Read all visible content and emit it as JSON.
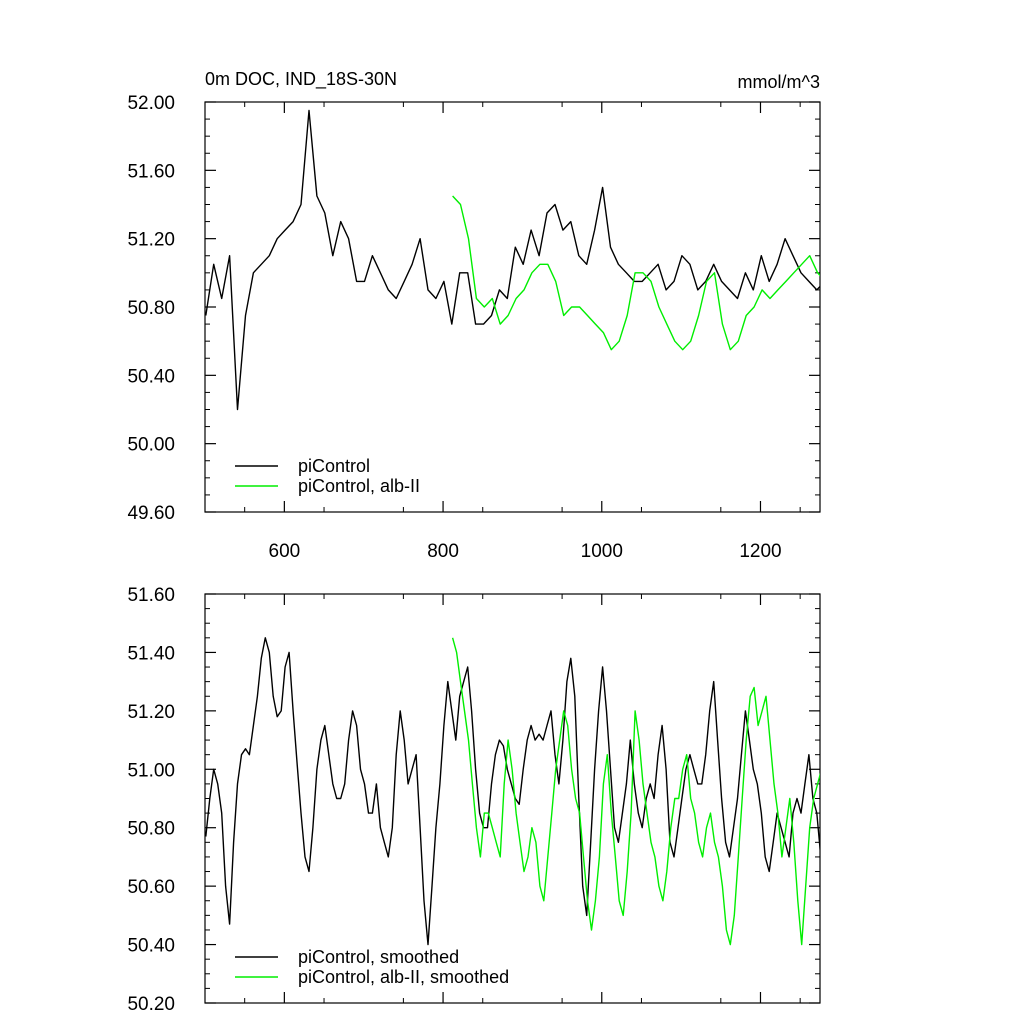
{
  "colors": {
    "control": "#000000",
    "alb": "#00ee00",
    "axis": "#000000"
  },
  "chart_data": [
    {
      "type": "line",
      "title": "0m DOC, IND_18S-30N",
      "units": "mmol/m^3",
      "xlim": [
        500,
        1275
      ],
      "ylim": [
        49.6,
        52.0
      ],
      "xticks": [
        600,
        800,
        1000,
        1200
      ],
      "xtick_labels": [
        "600",
        "800",
        "1000",
        "1200"
      ],
      "yticks": [
        49.6,
        50.0,
        50.4,
        50.8,
        51.2,
        51.6,
        52.0
      ],
      "ytick_labels": [
        "49.60",
        "50.00",
        "50.40",
        "50.80",
        "51.20",
        "51.60",
        "52.00"
      ],
      "legend_position": "bottom-left",
      "series": [
        {
          "name": "piControl",
          "color": "#000000",
          "x_start": 501,
          "x_step": 10,
          "values": [
            50.75,
            51.05,
            50.85,
            51.1,
            50.2,
            50.75,
            51.0,
            51.05,
            51.1,
            51.2,
            51.25,
            51.3,
            51.4,
            51.95,
            51.45,
            51.35,
            51.1,
            51.3,
            51.2,
            50.95,
            50.95,
            51.1,
            51.0,
            50.9,
            50.85,
            50.95,
            51.05,
            51.2,
            50.9,
            50.85,
            50.95,
            50.7,
            51.0,
            51.0,
            50.7,
            50.7,
            50.75,
            50.9,
            50.85,
            51.15,
            51.05,
            51.25,
            51.1,
            51.35,
            51.4,
            51.25,
            51.3,
            51.1,
            51.05,
            51.25,
            51.5,
            51.15,
            51.05,
            51.0,
            50.95,
            50.95,
            51.0,
            51.05,
            50.9,
            50.95,
            51.1,
            51.05,
            50.9,
            50.95,
            51.05,
            50.95,
            50.9,
            50.85,
            51.0,
            50.9,
            51.1,
            50.95,
            51.05,
            51.2,
            51.1,
            51.0,
            50.95,
            50.9,
            50.95,
            50.8
          ]
        },
        {
          "name": "piControl, alb-II",
          "color": "#00ee00",
          "x_start": 812,
          "x_step": 10,
          "values": [
            51.45,
            51.4,
            51.2,
            50.85,
            50.8,
            50.85,
            50.7,
            50.75,
            50.85,
            50.9,
            51.0,
            51.05,
            51.05,
            50.95,
            50.75,
            50.8,
            50.8,
            50.75,
            50.7,
            50.65,
            50.55,
            50.6,
            50.75,
            51.0,
            51.0,
            50.95,
            50.8,
            50.7,
            50.6,
            50.55,
            50.6,
            50.75,
            50.95,
            51.0,
            50.7,
            50.55,
            50.6,
            50.75,
            50.8,
            50.9,
            50.85,
            50.9,
            50.95,
            51.0,
            51.05,
            51.1,
            51.0,
            50.95,
            50.9,
            50.9,
            50.85,
            50.95,
            51.1,
            51.3,
            51.0,
            50.75,
            50.6,
            50.6,
            50.65,
            50.8,
            50.55,
            50.75,
            50.8,
            50.65,
            50.7,
            50.8,
            51.0,
            51.3,
            50.85,
            50.3,
            50.7,
            50.8,
            50.75,
            50.85
          ]
        }
      ]
    },
    {
      "type": "line",
      "xlim": [
        500,
        1275
      ],
      "ylim": [
        50.2,
        51.6
      ],
      "xticks": [
        600,
        800,
        1000,
        1200
      ],
      "yticks": [
        50.2,
        50.4,
        50.6,
        50.8,
        51.0,
        51.2,
        51.4,
        51.6
      ],
      "ytick_labels": [
        "50.20",
        "50.40",
        "50.60",
        "50.80",
        "51.00",
        "51.20",
        "51.40",
        "51.60"
      ],
      "legend_position": "bottom-left",
      "series": [
        {
          "name": "piControl, smoothed",
          "color": "#000000",
          "x_start": 501,
          "x_step": 5,
          "values": [
            50.77,
            50.9,
            51.0,
            50.95,
            50.85,
            50.6,
            50.47,
            50.75,
            50.95,
            51.05,
            51.07,
            51.05,
            51.15,
            51.25,
            51.38,
            51.45,
            51.4,
            51.25,
            51.18,
            51.2,
            51.35,
            51.4,
            51.2,
            51.02,
            50.85,
            50.7,
            50.65,
            50.8,
            51.0,
            51.1,
            51.15,
            51.05,
            50.95,
            50.9,
            50.9,
            50.95,
            51.1,
            51.2,
            51.15,
            51.0,
            50.95,
            50.85,
            50.85,
            50.95,
            50.8,
            50.75,
            50.7,
            50.8,
            51.05,
            51.2,
            51.1,
            50.95,
            51.0,
            51.05,
            50.8,
            50.55,
            50.4,
            50.6,
            50.8,
            50.95,
            51.15,
            51.3,
            51.2,
            51.1,
            51.25,
            51.3,
            51.35,
            51.2,
            51.0,
            50.85,
            50.8,
            50.8,
            50.95,
            51.05,
            51.1,
            51.08,
            51.0,
            50.95,
            50.9,
            50.88,
            51.0,
            51.1,
            51.15,
            51.1,
            51.12,
            51.1,
            51.15,
            51.2,
            51.05,
            50.95,
            51.1,
            51.3,
            51.38,
            51.25,
            50.9,
            50.6,
            50.5,
            50.75,
            51.0,
            51.2,
            51.35,
            51.2,
            51.0,
            50.8,
            50.75,
            50.85,
            50.95,
            51.1,
            50.95,
            50.85,
            50.8,
            50.9,
            50.95,
            50.9,
            51.05,
            51.15,
            51.0,
            50.75,
            50.7,
            50.8,
            50.9,
            51.0,
            51.05,
            51.0,
            50.95,
            50.95,
            51.05,
            51.2,
            51.3,
            51.1,
            50.9,
            50.75,
            50.7,
            50.8,
            50.9,
            51.05,
            51.2,
            51.1,
            51.0,
            50.95,
            50.85,
            50.7,
            50.65,
            50.75,
            50.85,
            50.8,
            50.75,
            50.7,
            50.85,
            50.9,
            50.85,
            50.95,
            51.05,
            50.9,
            50.85,
            50.7,
            50.65,
            50.8,
            50.95,
            51.2,
            51.4,
            51.35,
            51.2,
            51.0,
            50.95,
            51.1,
            51.0,
            50.8,
            50.65,
            50.57,
            50.6,
            50.65,
            50.72,
            50.75
          ]
        },
        {
          "name": "piControl, alb-II, smoothed",
          "color": "#00ee00",
          "x_start": 812,
          "x_step": 5,
          "values": [
            51.45,
            51.4,
            51.3,
            51.2,
            51.1,
            50.95,
            50.8,
            50.7,
            50.85,
            50.85,
            50.8,
            50.75,
            50.7,
            50.95,
            51.1,
            51.0,
            50.85,
            50.75,
            50.65,
            50.7,
            50.8,
            50.75,
            50.6,
            50.55,
            50.7,
            50.85,
            51.0,
            51.1,
            51.2,
            51.15,
            51.0,
            50.9,
            50.85,
            50.7,
            50.55,
            50.45,
            50.55,
            50.7,
            50.95,
            51.05,
            50.85,
            50.7,
            50.55,
            50.5,
            50.65,
            50.85,
            51.2,
            51.1,
            50.95,
            50.85,
            50.75,
            50.7,
            50.6,
            50.55,
            50.65,
            50.8,
            50.9,
            50.9,
            51.0,
            51.05,
            50.9,
            50.85,
            50.75,
            50.7,
            50.8,
            50.85,
            50.75,
            50.7,
            50.6,
            50.45,
            50.4,
            50.5,
            50.7,
            50.9,
            51.1,
            51.25,
            51.28,
            51.15,
            51.2,
            51.25,
            51.1,
            50.95,
            50.85,
            50.7,
            50.8,
            50.9,
            50.75,
            50.55,
            50.4,
            50.6,
            50.8,
            50.9,
            50.95,
            51.0,
            50.9,
            50.8,
            50.85,
            50.75,
            50.7,
            50.8,
            50.9,
            51.05,
            51.2,
            51.35,
            51.3,
            51.1,
            50.9,
            50.7,
            50.5,
            50.35,
            50.5,
            50.7,
            50.75,
            50.72,
            50.8,
            50.9,
            50.97,
            50.95,
            50.85,
            50.9
          ]
        }
      ]
    }
  ]
}
